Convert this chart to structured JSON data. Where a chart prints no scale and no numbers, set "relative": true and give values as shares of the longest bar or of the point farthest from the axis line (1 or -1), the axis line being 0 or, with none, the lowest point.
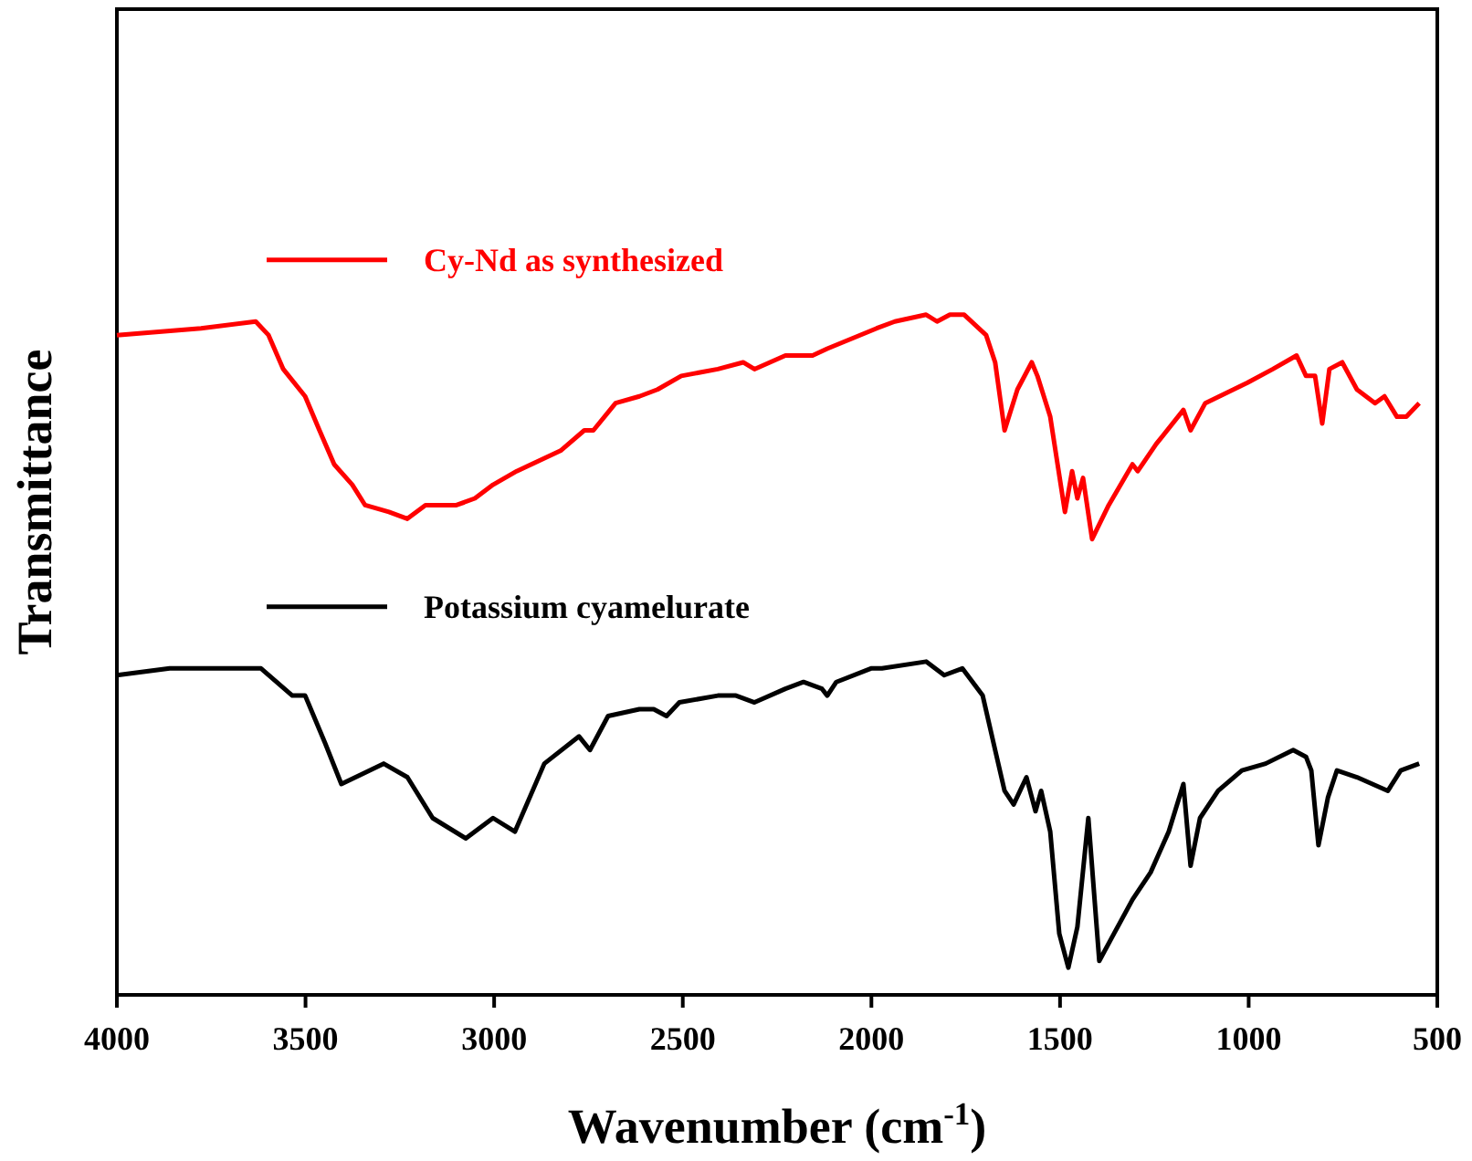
{
  "chart_data": {
    "type": "line",
    "relative": true,
    "xlabel": "Wavenumber (cm$^{-1}$)",
    "ylabel": "Transmittance",
    "xlim": [
      4000,
      500
    ],
    "xticks": [
      4000,
      3500,
      3000,
      2500,
      2000,
      1500,
      1000,
      500
    ],
    "legend": "left",
    "grid": false,
    "series": [
      {
        "name": "Cy-Nd as synthesized",
        "color": "#ff0000",
        "x": [
          4000,
          3777,
          3632,
          3598,
          3559,
          3501,
          3463,
          3424,
          3376,
          3342,
          3279,
          3230,
          3182,
          3100,
          3051,
          3003,
          2940,
          2824,
          2761,
          2737,
          2678,
          2615,
          2567,
          2504,
          2407,
          2340,
          2310,
          2228,
          2180,
          2156,
          2117,
          1986,
          1938,
          1855,
          1826,
          1792,
          1754,
          1696,
          1672,
          1647,
          1613,
          1575,
          1560,
          1526,
          1487,
          1468,
          1454,
          1439,
          1415,
          1371,
          1308,
          1294,
          1245,
          1173,
          1154,
          1115,
          1003,
          936,
          873,
          848,
          824,
          805,
          786,
          752,
          713,
          665,
          640,
          607,
          582,
          548
        ],
        "values": [
          0.97,
          0.98,
          0.99,
          0.97,
          0.92,
          0.88,
          0.83,
          0.78,
          0.75,
          0.72,
          0.71,
          0.7,
          0.72,
          0.72,
          0.73,
          0.75,
          0.77,
          0.8,
          0.83,
          0.83,
          0.87,
          0.88,
          0.89,
          0.91,
          0.92,
          0.93,
          0.92,
          0.94,
          0.94,
          0.94,
          0.95,
          0.98,
          0.99,
          1.0,
          0.99,
          1.0,
          1.0,
          0.97,
          0.93,
          0.83,
          0.89,
          0.93,
          0.91,
          0.85,
          0.71,
          0.77,
          0.73,
          0.76,
          0.67,
          0.72,
          0.78,
          0.77,
          0.81,
          0.86,
          0.83,
          0.87,
          0.9,
          0.92,
          0.94,
          0.91,
          0.91,
          0.84,
          0.92,
          0.93,
          0.89,
          0.87,
          0.88,
          0.85,
          0.85,
          0.87
        ]
      },
      {
        "name": "Potassium cyamelurate",
        "color": "#000000",
        "x": [
          4000,
          3860,
          3618,
          3535,
          3501,
          3448,
          3405,
          3293,
          3230,
          3163,
          3075,
          3003,
          2945,
          2867,
          2775,
          2746,
          2698,
          2615,
          2577,
          2543,
          2509,
          2407,
          2359,
          2310,
          2228,
          2180,
          2131,
          2117,
          2093,
          2001,
          1972,
          1855,
          1807,
          1759,
          1705,
          1672,
          1647,
          1623,
          1589,
          1565,
          1550,
          1526,
          1502,
          1478,
          1454,
          1425,
          1396,
          1357,
          1308,
          1260,
          1212,
          1173,
          1154,
          1129,
          1081,
          1018,
          955,
          882,
          848,
          834,
          815,
          790,
          766,
          713,
          631,
          597,
          548
        ],
        "values": [
          0.47,
          0.48,
          0.48,
          0.44,
          0.44,
          0.37,
          0.31,
          0.34,
          0.32,
          0.26,
          0.23,
          0.26,
          0.24,
          0.34,
          0.38,
          0.36,
          0.41,
          0.42,
          0.42,
          0.41,
          0.43,
          0.44,
          0.44,
          0.43,
          0.45,
          0.46,
          0.45,
          0.44,
          0.46,
          0.48,
          0.48,
          0.49,
          0.47,
          0.48,
          0.44,
          0.36,
          0.3,
          0.28,
          0.32,
          0.27,
          0.3,
          0.24,
          0.09,
          0.04,
          0.1,
          0.26,
          0.05,
          0.09,
          0.14,
          0.18,
          0.24,
          0.31,
          0.19,
          0.26,
          0.3,
          0.33,
          0.34,
          0.36,
          0.35,
          0.33,
          0.22,
          0.29,
          0.33,
          0.32,
          0.3,
          0.33,
          0.34
        ]
      }
    ]
  }
}
